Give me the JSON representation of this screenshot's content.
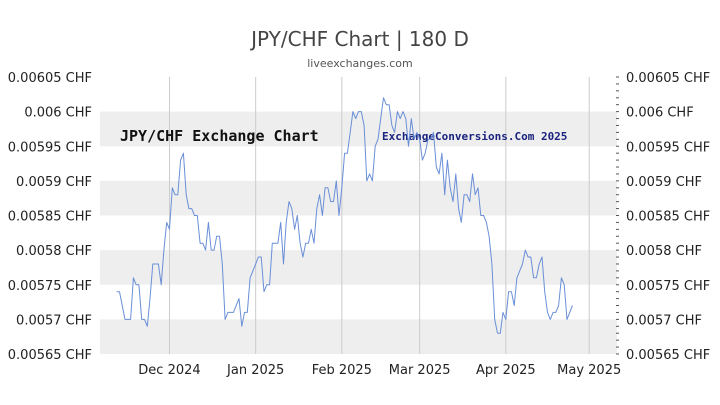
{
  "chart_data": {
    "type": "line",
    "title": "JPY/CHF Chart | 180 D",
    "subtitle": "liveexchanges.com",
    "watermark_left": "JPY/CHF Exchange Chart",
    "watermark_right": "ExchangeConversions.Com 2025",
    "ylim": [
      0.00565,
      0.00605
    ],
    "y_ticks": [
      {
        "value": 0.00605,
        "label": "0.00605 CHF"
      },
      {
        "value": 0.006,
        "label": "0.006 CHF"
      },
      {
        "value": 0.00595,
        "label": "0.00595 CHF"
      },
      {
        "value": 0.0059,
        "label": "0.0059 CHF"
      },
      {
        "value": 0.00585,
        "label": "0.00585 CHF"
      },
      {
        "value": 0.0058,
        "label": "0.0058 CHF"
      },
      {
        "value": 0.00575,
        "label": "0.00575 CHF"
      },
      {
        "value": 0.0057,
        "label": "0.0057 CHF"
      },
      {
        "value": 0.00565,
        "label": "0.00565 CHF"
      }
    ],
    "x_ticks": [
      {
        "date": "2024-12-01",
        "label": "Dec 2024"
      },
      {
        "date": "2025-01-01",
        "label": "Jan 2025"
      },
      {
        "date": "2025-02-01",
        "label": "Feb 2025"
      },
      {
        "date": "2025-03-01",
        "label": "Mar 2025"
      },
      {
        "date": "2025-04-01",
        "label": "Apr 2025"
      },
      {
        "date": "2025-05-01",
        "label": "May 2025"
      }
    ],
    "xlim": [
      "2024-11-06",
      "2025-05-11"
    ],
    "grid": true,
    "colors": {
      "line": "#6a8fd8",
      "band": "#eeeeee",
      "grid": "#cccccc"
    },
    "series": [
      {
        "points": [
          [
            "2024-11-12",
            0.00574
          ],
          [
            "2024-11-13",
            0.00574
          ],
          [
            "2024-11-14",
            0.00572
          ],
          [
            "2024-11-15",
            0.0057
          ],
          [
            "2024-11-16",
            0.0057
          ],
          [
            "2024-11-17",
            0.0057
          ],
          [
            "2024-11-18",
            0.00576
          ],
          [
            "2024-11-19",
            0.00575
          ],
          [
            "2024-11-20",
            0.00575
          ],
          [
            "2024-11-21",
            0.0057
          ],
          [
            "2024-11-22",
            0.0057
          ],
          [
            "2024-11-23",
            0.00569
          ],
          [
            "2024-11-24",
            0.00573
          ],
          [
            "2024-11-25",
            0.00578
          ],
          [
            "2024-11-26",
            0.00578
          ],
          [
            "2024-11-27",
            0.00578
          ],
          [
            "2024-11-28",
            0.00575
          ],
          [
            "2024-11-29",
            0.0058
          ],
          [
            "2024-11-30",
            0.00584
          ],
          [
            "2024-12-01",
            0.00583
          ],
          [
            "2024-12-02",
            0.00589
          ],
          [
            "2024-12-03",
            0.00588
          ],
          [
            "2024-12-04",
            0.00588
          ],
          [
            "2024-12-05",
            0.00593
          ],
          [
            "2024-12-06",
            0.00594
          ],
          [
            "2024-12-07",
            0.00588
          ],
          [
            "2024-12-08",
            0.00586
          ],
          [
            "2024-12-09",
            0.00586
          ],
          [
            "2024-12-10",
            0.00585
          ],
          [
            "2024-12-11",
            0.00585
          ],
          [
            "2024-12-12",
            0.00581
          ],
          [
            "2024-12-13",
            0.00581
          ],
          [
            "2024-12-14",
            0.0058
          ],
          [
            "2024-12-15",
            0.00584
          ],
          [
            "2024-12-16",
            0.0058
          ],
          [
            "2024-12-17",
            0.0058
          ],
          [
            "2024-12-18",
            0.00582
          ],
          [
            "2024-12-19",
            0.00582
          ],
          [
            "2024-12-20",
            0.00578
          ],
          [
            "2024-12-21",
            0.0057
          ],
          [
            "2024-12-22",
            0.00571
          ],
          [
            "2024-12-23",
            0.00571
          ],
          [
            "2024-12-24",
            0.00571
          ],
          [
            "2024-12-25",
            0.00572
          ],
          [
            "2024-12-26",
            0.00573
          ],
          [
            "2024-12-27",
            0.00569
          ],
          [
            "2024-12-28",
            0.00571
          ],
          [
            "2024-12-29",
            0.00571
          ],
          [
            "2024-12-30",
            0.00576
          ],
          [
            "2024-12-31",
            0.00577
          ],
          [
            "2025-01-01",
            0.00578
          ],
          [
            "2025-01-02",
            0.00579
          ],
          [
            "2025-01-03",
            0.00579
          ],
          [
            "2025-01-04",
            0.00574
          ],
          [
            "2025-01-05",
            0.00575
          ],
          [
            "2025-01-06",
            0.00575
          ],
          [
            "2025-01-07",
            0.00581
          ],
          [
            "2025-01-08",
            0.00581
          ],
          [
            "2025-01-09",
            0.00581
          ],
          [
            "2025-01-10",
            0.00584
          ],
          [
            "2025-01-11",
            0.00578
          ],
          [
            "2025-01-12",
            0.00584
          ],
          [
            "2025-01-13",
            0.00587
          ],
          [
            "2025-01-14",
            0.00586
          ],
          [
            "2025-01-15",
            0.00583
          ],
          [
            "2025-01-16",
            0.00585
          ],
          [
            "2025-01-17",
            0.00581
          ],
          [
            "2025-01-18",
            0.00579
          ],
          [
            "2025-01-19",
            0.00581
          ],
          [
            "2025-01-20",
            0.00581
          ],
          [
            "2025-01-21",
            0.00583
          ],
          [
            "2025-01-22",
            0.00581
          ],
          [
            "2025-01-23",
            0.00586
          ],
          [
            "2025-01-24",
            0.00588
          ],
          [
            "2025-01-25",
            0.00585
          ],
          [
            "2025-01-26",
            0.00589
          ],
          [
            "2025-01-27",
            0.00589
          ],
          [
            "2025-01-28",
            0.00587
          ],
          [
            "2025-01-29",
            0.00587
          ],
          [
            "2025-01-30",
            0.0059
          ],
          [
            "2025-01-31",
            0.00585
          ],
          [
            "2025-02-01",
            0.00589
          ],
          [
            "2025-02-02",
            0.00594
          ],
          [
            "2025-02-03",
            0.00594
          ],
          [
            "2025-02-04",
            0.00597
          ],
          [
            "2025-02-05",
            0.006
          ],
          [
            "2025-02-06",
            0.00599
          ],
          [
            "2025-02-07",
            0.006
          ],
          [
            "2025-02-08",
            0.006
          ],
          [
            "2025-02-09",
            0.00598
          ],
          [
            "2025-02-10",
            0.0059
          ],
          [
            "2025-02-11",
            0.00591
          ],
          [
            "2025-02-12",
            0.0059
          ],
          [
            "2025-02-13",
            0.00595
          ],
          [
            "2025-02-14",
            0.00596
          ],
          [
            "2025-02-15",
            0.00599
          ],
          [
            "2025-02-16",
            0.00602
          ],
          [
            "2025-02-17",
            0.00601
          ],
          [
            "2025-02-18",
            0.00601
          ],
          [
            "2025-02-19",
            0.00598
          ],
          [
            "2025-02-20",
            0.00597
          ],
          [
            "2025-02-21",
            0.006
          ],
          [
            "2025-02-22",
            0.00599
          ],
          [
            "2025-02-23",
            0.006
          ],
          [
            "2025-02-24",
            0.00599
          ],
          [
            "2025-02-25",
            0.00595
          ],
          [
            "2025-02-26",
            0.00599
          ],
          [
            "2025-02-27",
            0.00596
          ],
          [
            "2025-02-28",
            0.00597
          ],
          [
            "2025-03-01",
            0.00596
          ],
          [
            "2025-03-02",
            0.00593
          ],
          [
            "2025-03-03",
            0.00594
          ],
          [
            "2025-03-04",
            0.00596
          ],
          [
            "2025-03-05",
            0.00596
          ],
          [
            "2025-03-06",
            0.00597
          ],
          [
            "2025-03-07",
            0.00592
          ],
          [
            "2025-03-08",
            0.00591
          ],
          [
            "2025-03-09",
            0.00594
          ],
          [
            "2025-03-10",
            0.00588
          ],
          [
            "2025-03-11",
            0.00593
          ],
          [
            "2025-03-12",
            0.00589
          ],
          [
            "2025-03-13",
            0.00587
          ],
          [
            "2025-03-14",
            0.00591
          ],
          [
            "2025-03-15",
            0.00586
          ],
          [
            "2025-03-16",
            0.00584
          ],
          [
            "2025-03-17",
            0.00588
          ],
          [
            "2025-03-18",
            0.00588
          ],
          [
            "2025-03-19",
            0.00587
          ],
          [
            "2025-03-20",
            0.00591
          ],
          [
            "2025-03-21",
            0.00588
          ],
          [
            "2025-03-22",
            0.00589
          ],
          [
            "2025-03-23",
            0.00585
          ],
          [
            "2025-03-24",
            0.00585
          ],
          [
            "2025-03-25",
            0.00584
          ],
          [
            "2025-03-26",
            0.00582
          ],
          [
            "2025-03-27",
            0.00578
          ],
          [
            "2025-03-28",
            0.0057
          ],
          [
            "2025-03-29",
            0.00568
          ],
          [
            "2025-03-30",
            0.00568
          ],
          [
            "2025-03-31",
            0.00571
          ],
          [
            "2025-04-01",
            0.0057
          ],
          [
            "2025-04-02",
            0.00574
          ],
          [
            "2025-04-03",
            0.00574
          ],
          [
            "2025-04-04",
            0.00572
          ],
          [
            "2025-04-05",
            0.00576
          ],
          [
            "2025-04-06",
            0.00577
          ],
          [
            "2025-04-07",
            0.00578
          ],
          [
            "2025-04-08",
            0.0058
          ],
          [
            "2025-04-09",
            0.00579
          ],
          [
            "2025-04-10",
            0.00579
          ],
          [
            "2025-04-11",
            0.00576
          ],
          [
            "2025-04-12",
            0.00576
          ],
          [
            "2025-04-13",
            0.00578
          ],
          [
            "2025-04-14",
            0.00579
          ],
          [
            "2025-04-15",
            0.00574
          ],
          [
            "2025-04-16",
            0.00571
          ],
          [
            "2025-04-17",
            0.0057
          ],
          [
            "2025-04-18",
            0.00571
          ],
          [
            "2025-04-19",
            0.00571
          ],
          [
            "2025-04-20",
            0.00572
          ],
          [
            "2025-04-21",
            0.00576
          ],
          [
            "2025-04-22",
            0.00575
          ],
          [
            "2025-04-23",
            0.0057
          ],
          [
            "2025-04-24",
            0.00571
          ],
          [
            "2025-04-25",
            0.00572
          ]
        ]
      }
    ]
  }
}
